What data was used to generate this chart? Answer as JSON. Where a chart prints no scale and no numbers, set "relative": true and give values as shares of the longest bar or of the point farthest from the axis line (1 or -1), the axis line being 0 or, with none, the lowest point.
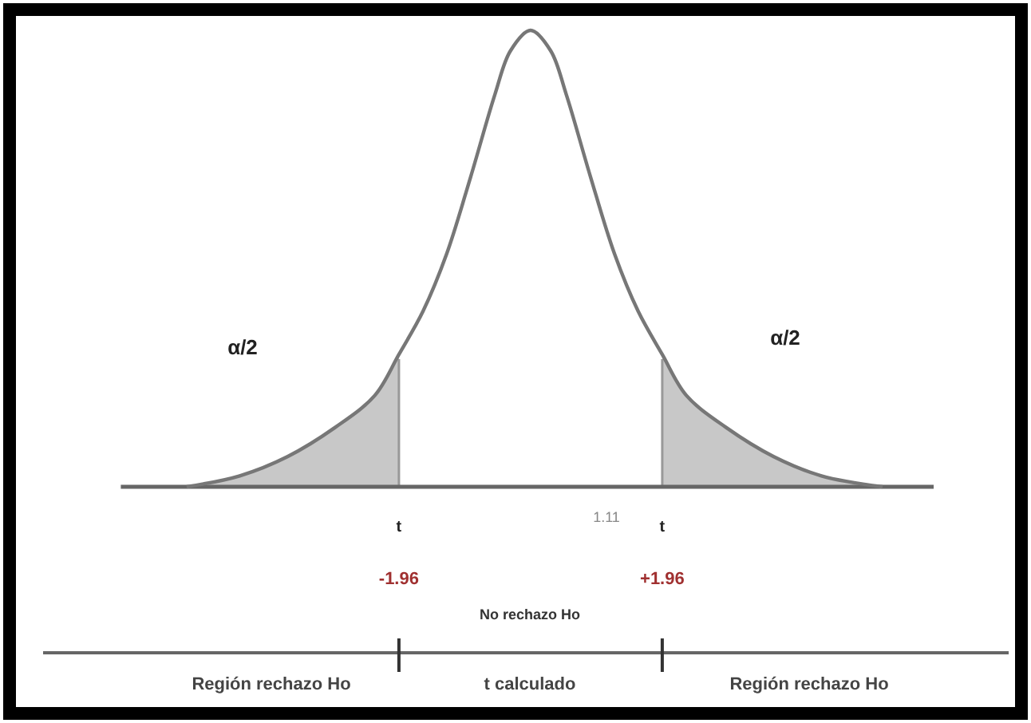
{
  "chart_data": {
    "type": "line",
    "relative": true,
    "x": [
      -5.12,
      -4.33,
      -3.62,
      -2.91,
      -2.32,
      -1.96,
      -1.6,
      -1.25,
      -0.89,
      -0.53,
      -0.3,
      0,
      0.3,
      0.53,
      0.89,
      1.25,
      1.6,
      1.96,
      2.32,
      2.91,
      3.62,
      4.33,
      5.24
    ],
    "series": [
      {
        "type": "area",
        "color": "#c8c8c8",
        "x": [
          -5.12,
          -4.33,
          -3.62,
          -2.91,
          -2.32,
          -1.96
        ],
        "values": [
          0,
          0.024,
          0.066,
          0.13,
          0.2,
          0.29
        ]
      },
      {
        "type": "area",
        "color": "#c8c8c8",
        "x": [
          1.96,
          2.32,
          2.91,
          3.62,
          4.33,
          5.24
        ],
        "values": [
          0.29,
          0.2,
          0.13,
          0.066,
          0.024,
          0
        ]
      },
      {
        "color": "#777777",
        "values": [
          0,
          0.024,
          0.066,
          0.13,
          0.2,
          0.29,
          0.385,
          0.51,
          0.68,
          0.86,
          0.955,
          1,
          0.955,
          0.86,
          0.68,
          0.51,
          0.385,
          0.29,
          0.2,
          0.13,
          0.066,
          0.024,
          0
        ]
      }
    ],
    "xlim": [
      -6.1,
      6.0
    ],
    "xticks": [
      {
        "value": -1.96,
        "label": "-1.96"
      },
      {
        "value": 1.96,
        "label": "+1.96"
      }
    ],
    "ref_lines": [
      {
        "axis": "x",
        "value": -1.96,
        "label": "t",
        "color": "#999999"
      },
      {
        "axis": "x",
        "value": 1.96,
        "label": "t",
        "color": "#999999"
      }
    ],
    "annotations": [
      "α/2",
      "α/2",
      "1.11",
      "No rechazo Ho",
      "Región rechazo Ho",
      "t calculado",
      "Región rechazo Ho"
    ],
    "grid": false,
    "marker": "none",
    "line_style": "solid"
  }
}
